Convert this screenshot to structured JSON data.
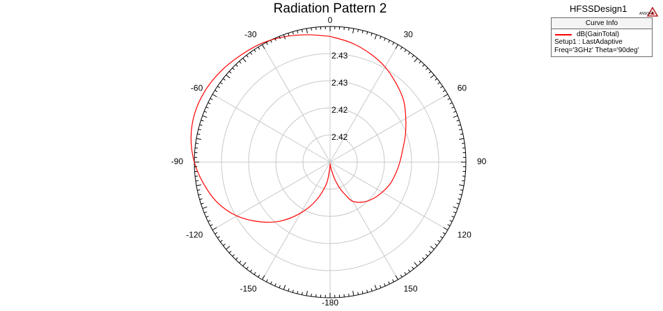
{
  "window": {
    "design_name": "HFSSDesign1",
    "logo_text": "ANSOFT"
  },
  "legend": {
    "title": "Curve Info",
    "series_name": "dB(GainTotal)",
    "setup": "Setup1 : LastAdaptive",
    "params": "Freq='3GHz' Theta='90deg'"
  },
  "colors": {
    "series": "#ff0000",
    "grid": "#c8c8c8",
    "outer_circle": "#000000"
  },
  "chart_data": {
    "type": "polar",
    "title": "Radiation Pattern 2",
    "angle_ticks": [
      0,
      30,
      60,
      90,
      120,
      150,
      -180,
      -150,
      -120,
      -90,
      -60,
      -30
    ],
    "radial_labels": [
      "2.42",
      "2.42",
      "2.43",
      "2.43"
    ],
    "radial_range": [
      2.41,
      2.44
    ],
    "grid": true,
    "legend_position": "top-right",
    "series": [
      {
        "name": "dB(GainTotal)",
        "angle_deg": [
          0,
          10,
          20,
          30,
          40,
          50,
          60,
          70,
          80,
          90,
          100,
          110,
          120,
          130,
          140,
          150,
          155,
          160,
          165,
          170,
          175,
          180,
          185,
          190,
          200,
          210,
          220,
          230,
          240,
          250,
          260,
          270,
          280,
          290,
          300,
          310,
          320,
          330,
          340,
          350,
          360
        ],
        "gain_db": [
          2.4378,
          2.4368,
          2.4356,
          2.4343,
          2.4327,
          2.4312,
          2.4293,
          2.4277,
          2.4263,
          2.4254,
          2.4247,
          2.4241,
          2.4233,
          2.4225,
          2.4215,
          2.42,
          2.418,
          2.416,
          2.4138,
          2.4118,
          2.4108,
          2.4105,
          2.412,
          2.415,
          2.419,
          2.423,
          2.427,
          2.4305,
          2.4338,
          2.4364,
          2.4383,
          2.44,
          2.4412,
          2.4418,
          2.4418,
          2.4414,
          2.4408,
          2.4403,
          2.4395,
          2.4386,
          2.4378
        ]
      }
    ]
  }
}
